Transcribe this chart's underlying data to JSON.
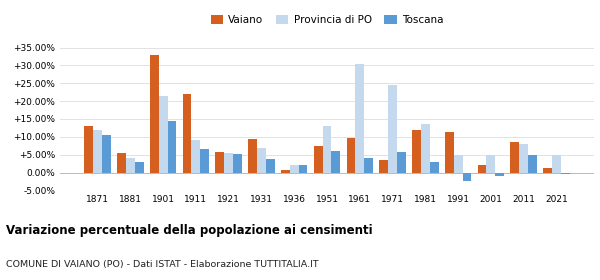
{
  "years": [
    1871,
    1881,
    1901,
    1911,
    1921,
    1931,
    1936,
    1951,
    1961,
    1971,
    1981,
    1991,
    2001,
    2011,
    2021
  ],
  "vaiano": [
    13.0,
    5.5,
    33.0,
    22.0,
    5.8,
    9.5,
    0.8,
    7.5,
    9.8,
    3.5,
    11.8,
    11.3,
    2.2,
    8.5,
    1.2
  ],
  "provincia_po": [
    12.0,
    4.0,
    21.5,
    9.0,
    5.5,
    7.0,
    2.0,
    13.0,
    30.5,
    24.5,
    13.5,
    5.0,
    5.0,
    8.0,
    5.0
  ],
  "toscana": [
    10.5,
    3.0,
    14.5,
    6.5,
    5.2,
    3.8,
    2.0,
    6.0,
    4.0,
    5.7,
    3.0,
    -2.5,
    -1.0,
    5.0,
    -0.5
  ],
  "vaiano_color": "#d45f1e",
  "provincia_color": "#c5d9ee",
  "toscana_color": "#5b9bd5",
  "background_color": "#ffffff",
  "title": "Variazione percentuale della popolazione ai censimenti",
  "subtitle": "COMUNE DI VAIANO (PO) - Dati ISTAT - Elaborazione TUTTITALIA.IT",
  "ylim": [
    -5.0,
    35.0
  ],
  "yticks": [
    -5.0,
    0.0,
    5.0,
    10.0,
    15.0,
    20.0,
    25.0,
    30.0,
    35.0
  ],
  "bar_width": 0.27,
  "legend_labels": [
    "Vaiano",
    "Provincia di PO",
    "Toscana"
  ]
}
